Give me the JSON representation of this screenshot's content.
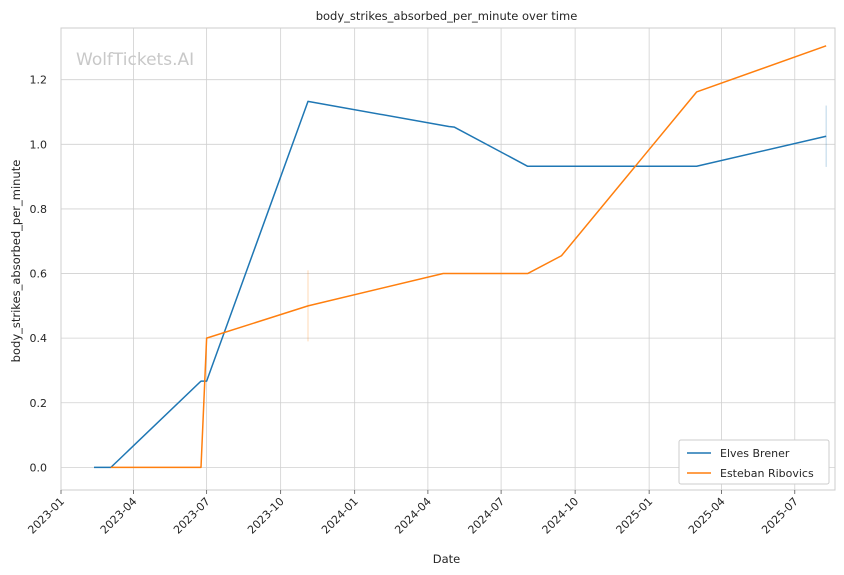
{
  "watermark": "WolfTickets.AI",
  "chart_data": {
    "type": "line",
    "title": "body_strikes_absorbed_per_minute over time",
    "xlabel": "Date",
    "ylabel": "body_strikes_absorbed_per_minute",
    "x_type": "date",
    "xlim": [
      "2023-01-01",
      "2025-08-20"
    ],
    "ylim": [
      -0.07,
      1.36
    ],
    "x_ticks": [
      "2023-01-01",
      "2023-04-01",
      "2023-07-01",
      "2023-10-01",
      "2024-01-01",
      "2024-04-01",
      "2024-07-01",
      "2024-10-01",
      "2025-01-01",
      "2025-04-01",
      "2025-07-01"
    ],
    "x_tick_labels": [
      "2023-01",
      "2023-04",
      "2023-07",
      "2023-10",
      "2024-01",
      "2024-04",
      "2024-07",
      "2024-10",
      "2025-01",
      "2025-04",
      "2025-07"
    ],
    "y_ticks": [
      0.0,
      0.2,
      0.4,
      0.6,
      0.8,
      1.0,
      1.2
    ],
    "y_tick_labels": [
      "0.0",
      "0.2",
      "0.4",
      "0.6",
      "0.8",
      "1.0",
      "1.2"
    ],
    "grid": true,
    "legend_position": "bottom-right",
    "series": [
      {
        "name": "Elves Brener",
        "color": "#1f77b4",
        "x": [
          "2023-02-11",
          "2023-03-04",
          "2023-06-24",
          "2023-07-01",
          "2023-11-04",
          "2024-04-27",
          "2024-05-04",
          "2024-08-03",
          "2025-03-01",
          "2025-08-09"
        ],
        "y": [
          0.0,
          0.0,
          0.267,
          0.267,
          1.133,
          1.055,
          1.053,
          0.932,
          0.932,
          1.025
        ],
        "error_bars": [
          {
            "x": "2025-08-09",
            "low": 0.93,
            "high": 1.12
          }
        ]
      },
      {
        "name": "Esteban Ribovics",
        "color": "#ff7f0e",
        "x": [
          "2023-03-04",
          "2023-06-24",
          "2023-07-01",
          "2023-11-04",
          "2024-04-20",
          "2024-08-03",
          "2024-09-14",
          "2025-03-01",
          "2025-08-09"
        ],
        "y": [
          0.0,
          0.0,
          0.4,
          0.5,
          0.6,
          0.6,
          0.655,
          1.162,
          1.305
        ],
        "error_bars": [
          {
            "x": "2023-11-04",
            "low": 0.39,
            "high": 0.61
          }
        ]
      }
    ]
  }
}
